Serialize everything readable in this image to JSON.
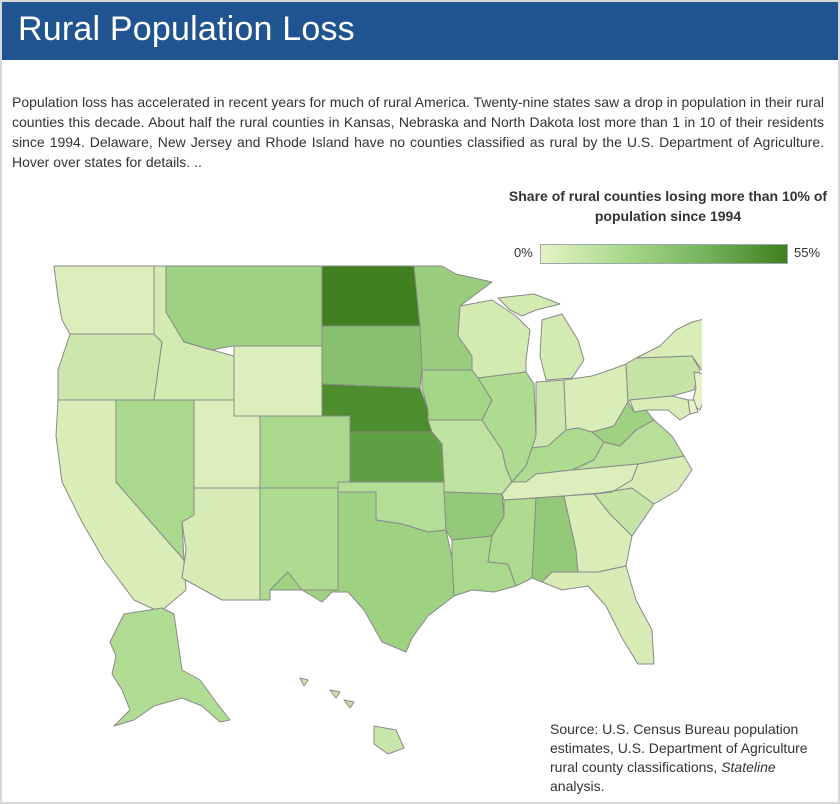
{
  "header": {
    "title": "Rural Population Loss"
  },
  "intro": {
    "text": "Population loss has accelerated in recent years for much of rural America. Twenty-nine states saw a drop in population in their rural counties this decade. About half the rural counties in Kansas, Nebraska and North Dakota lost more than 1 in 10 of their residents since 1994. Delaware, New Jersey and Rhode Island have no counties classified as rural by the U.S. Department of Agriculture. Hover over states for details. .."
  },
  "legend": {
    "title": "Share of rural counties losing more than 10% of population since 1994",
    "min_label": "0%",
    "max_label": "55%",
    "colors": [
      "#e7f2c6",
      "#a9d98c",
      "#75b35d",
      "#3f7f1d"
    ]
  },
  "source": {
    "prefix": "Source: U.S. Census Bureau population estimates, U.S. Department of Agriculture rural county classifications,",
    "italic": "Stateline",
    "suffix": " analysis."
  },
  "map_data": {
    "metric": "Share of rural counties losing more than 10% of population since 1994",
    "scale": [
      0,
      55
    ],
    "states": [
      {
        "id": "WA",
        "share": 3
      },
      {
        "id": "OR",
        "share": 8
      },
      {
        "id": "CA",
        "share": 4
      },
      {
        "id": "NV",
        "share": 18
      },
      {
        "id": "ID",
        "share": 6
      },
      {
        "id": "MT",
        "share": 22
      },
      {
        "id": "WY",
        "share": 3
      },
      {
        "id": "UT",
        "share": 3
      },
      {
        "id": "AZ",
        "share": 5
      },
      {
        "id": "CO",
        "share": 18
      },
      {
        "id": "NM",
        "share": 17
      },
      {
        "id": "ND",
        "share": 55
      },
      {
        "id": "SD",
        "share": 30
      },
      {
        "id": "NE",
        "share": 50
      },
      {
        "id": "KS",
        "share": 44
      },
      {
        "id": "OK",
        "share": 15
      },
      {
        "id": "TX",
        "share": 22
      },
      {
        "id": "MN",
        "share": 24
      },
      {
        "id": "IA",
        "share": 20
      },
      {
        "id": "MO",
        "share": 12
      },
      {
        "id": "AR",
        "share": 26
      },
      {
        "id": "LA",
        "share": 18
      },
      {
        "id": "WI",
        "share": 6
      },
      {
        "id": "IL",
        "share": 17
      },
      {
        "id": "MI",
        "share": 6
      },
      {
        "id": "IN",
        "share": 8
      },
      {
        "id": "OH",
        "share": 4
      },
      {
        "id": "KY",
        "share": 17
      },
      {
        "id": "TN",
        "share": 3
      },
      {
        "id": "MS",
        "share": 17
      },
      {
        "id": "AL",
        "share": 26
      },
      {
        "id": "GA",
        "share": 4
      },
      {
        "id": "FL",
        "share": 5
      },
      {
        "id": "SC",
        "share": 10
      },
      {
        "id": "NC",
        "share": 5
      },
      {
        "id": "VA",
        "share": 14
      },
      {
        "id": "WV",
        "share": 22
      },
      {
        "id": "PA",
        "share": 10
      },
      {
        "id": "NY",
        "share": 4
      },
      {
        "id": "ME",
        "share": 15
      },
      {
        "id": "NH",
        "share": 2
      },
      {
        "id": "VT",
        "share": 4
      },
      {
        "id": "MA",
        "share": 3
      },
      {
        "id": "CT",
        "share": 3
      },
      {
        "id": "MD",
        "share": 4
      },
      {
        "id": "DE",
        "share": 0
      },
      {
        "id": "NJ",
        "share": 0
      },
      {
        "id": "RI",
        "share": 0
      },
      {
        "id": "AK",
        "share": 16
      },
      {
        "id": "HI",
        "share": 9
      }
    ]
  }
}
